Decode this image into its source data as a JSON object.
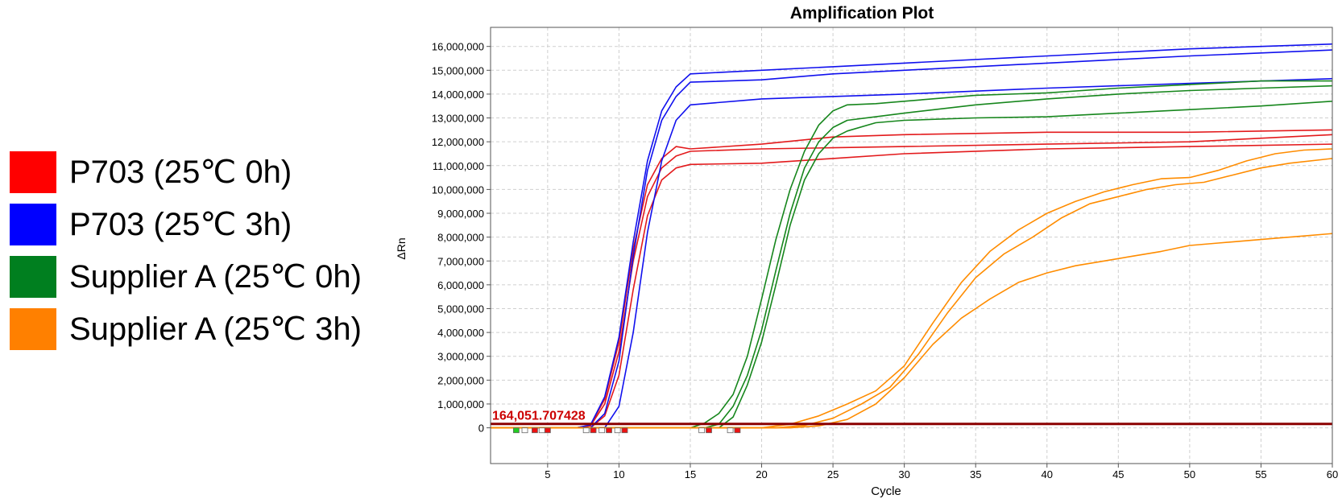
{
  "legend": [
    {
      "label": "P703 (25℃ 0h)",
      "color": "#ff0000"
    },
    {
      "label": "P703 (25℃ 3h)",
      "color": "#0000ff"
    },
    {
      "label": "Supplier A (25℃ 0h)",
      "color": "#007f1f"
    },
    {
      "label": "Supplier A (25℃ 3h)",
      "color": "#ff8000"
    }
  ],
  "chart_data": {
    "type": "line",
    "title": "Amplification Plot",
    "xlabel": "Cycle",
    "ylabel": "ΔRn",
    "xlim": [
      1,
      60
    ],
    "ylim": [
      -1500000,
      16800000
    ],
    "x_ticks": [
      5,
      10,
      15,
      20,
      25,
      30,
      35,
      40,
      45,
      50,
      55,
      60
    ],
    "y_ticks": [
      "0",
      "1,000,000",
      "2,000,000",
      "3,000,000",
      "4,000,000",
      "5,000,000",
      "6,000,000",
      "7,000,000",
      "8,000,000",
      "9,000,000",
      "10,000,000",
      "11,000,000",
      "12,000,000",
      "13,000,000",
      "14,000,000",
      "15,000,000",
      "16,000,000"
    ],
    "grid": true,
    "threshold": {
      "value": 164051.707428,
      "label": "164,051.707428",
      "color": "#8b0000",
      "label_color": "#cc0000"
    },
    "series": [
      {
        "group": "P703 (25℃ 0h)",
        "color": "#e31a1c",
        "points": [
          [
            1,
            0
          ],
          [
            7,
            0
          ],
          [
            8,
            100000
          ],
          [
            9,
            1200000
          ],
          [
            10,
            3600000
          ],
          [
            11,
            7500000
          ],
          [
            12,
            10200000
          ],
          [
            13,
            11300000
          ],
          [
            14,
            11800000
          ],
          [
            15,
            11700000
          ],
          [
            20,
            11900000
          ],
          [
            25,
            12200000
          ],
          [
            30,
            12300000
          ],
          [
            40,
            12400000
          ],
          [
            50,
            12400000
          ],
          [
            60,
            12500000
          ]
        ]
      },
      {
        "group": "P703 (25℃ 0h)",
        "color": "#e31a1c",
        "points": [
          [
            1,
            0
          ],
          [
            7,
            0
          ],
          [
            8,
            80000
          ],
          [
            9,
            1000000
          ],
          [
            10,
            3200000
          ],
          [
            11,
            7000000
          ],
          [
            12,
            9700000
          ],
          [
            13,
            10900000
          ],
          [
            14,
            11400000
          ],
          [
            15,
            11600000
          ],
          [
            20,
            11700000
          ],
          [
            25,
            11750000
          ],
          [
            30,
            11800000
          ],
          [
            40,
            11900000
          ],
          [
            50,
            12000000
          ],
          [
            60,
            12300000
          ]
        ]
      },
      {
        "group": "P703 (25℃ 0h)",
        "color": "#e31a1c",
        "points": [
          [
            1,
            0
          ],
          [
            8,
            0
          ],
          [
            9,
            500000
          ],
          [
            10,
            2200000
          ],
          [
            11,
            5800000
          ],
          [
            12,
            8900000
          ],
          [
            13,
            10400000
          ],
          [
            14,
            10900000
          ],
          [
            15,
            11050000
          ],
          [
            20,
            11100000
          ],
          [
            25,
            11300000
          ],
          [
            30,
            11500000
          ],
          [
            40,
            11700000
          ],
          [
            50,
            11800000
          ],
          [
            60,
            11900000
          ]
        ]
      },
      {
        "group": "P703 (25℃ 3h)",
        "color": "#1010ee",
        "points": [
          [
            1,
            0
          ],
          [
            7,
            0
          ],
          [
            8,
            120000
          ],
          [
            9,
            1300000
          ],
          [
            10,
            3800000
          ],
          [
            11,
            7800000
          ],
          [
            12,
            11200000
          ],
          [
            13,
            13300000
          ],
          [
            14,
            14300000
          ],
          [
            15,
            14850000
          ],
          [
            20,
            15000000
          ],
          [
            25,
            15150000
          ],
          [
            30,
            15300000
          ],
          [
            40,
            15600000
          ],
          [
            50,
            15900000
          ],
          [
            60,
            16100000
          ]
        ]
      },
      {
        "group": "P703 (25℃ 3h)",
        "color": "#1010ee",
        "points": [
          [
            1,
            0
          ],
          [
            8,
            0
          ],
          [
            9,
            600000
          ],
          [
            10,
            2800000
          ],
          [
            11,
            7200000
          ],
          [
            12,
            10800000
          ],
          [
            13,
            12900000
          ],
          [
            14,
            13900000
          ],
          [
            15,
            14500000
          ],
          [
            20,
            14600000
          ],
          [
            25,
            14850000
          ],
          [
            30,
            15000000
          ],
          [
            40,
            15300000
          ],
          [
            50,
            15600000
          ],
          [
            60,
            15850000
          ]
        ]
      },
      {
        "group": "P703 (25℃ 3h)",
        "color": "#1010ee",
        "points": [
          [
            1,
            0
          ],
          [
            9,
            0
          ],
          [
            10,
            900000
          ],
          [
            11,
            4000000
          ],
          [
            12,
            8200000
          ],
          [
            13,
            11200000
          ],
          [
            14,
            12900000
          ],
          [
            15,
            13550000
          ],
          [
            20,
            13800000
          ],
          [
            25,
            13900000
          ],
          [
            30,
            14000000
          ],
          [
            40,
            14250000
          ],
          [
            50,
            14450000
          ],
          [
            60,
            14650000
          ]
        ]
      },
      {
        "group": "Supplier A (25℃ 0h)",
        "color": "#16861c",
        "points": [
          [
            1,
            0
          ],
          [
            15,
            0
          ],
          [
            16,
            200000
          ],
          [
            17,
            600000
          ],
          [
            18,
            1400000
          ],
          [
            19,
            3000000
          ],
          [
            20,
            5400000
          ],
          [
            21,
            7900000
          ],
          [
            22,
            10000000
          ],
          [
            23,
            11600000
          ],
          [
            24,
            12700000
          ],
          [
            25,
            13300000
          ],
          [
            26,
            13550000
          ],
          [
            28,
            13600000
          ],
          [
            30,
            13700000
          ],
          [
            35,
            13950000
          ],
          [
            40,
            14050000
          ],
          [
            45,
            14250000
          ],
          [
            50,
            14400000
          ],
          [
            55,
            14550000
          ],
          [
            60,
            14550000
          ]
        ]
      },
      {
        "group": "Supplier A (25℃ 0h)",
        "color": "#16861c",
        "points": [
          [
            1,
            0
          ],
          [
            16,
            0
          ],
          [
            17,
            150000
          ],
          [
            18,
            900000
          ],
          [
            19,
            2200000
          ],
          [
            20,
            4100000
          ],
          [
            21,
            6600000
          ],
          [
            22,
            9000000
          ],
          [
            23,
            10900000
          ],
          [
            24,
            12000000
          ],
          [
            25,
            12600000
          ],
          [
            26,
            12900000
          ],
          [
            28,
            13050000
          ],
          [
            30,
            13200000
          ],
          [
            35,
            13550000
          ],
          [
            40,
            13800000
          ],
          [
            45,
            14000000
          ],
          [
            50,
            14150000
          ],
          [
            55,
            14250000
          ],
          [
            60,
            14350000
          ]
        ]
      },
      {
        "group": "Supplier A (25℃ 0h)",
        "color": "#16861c",
        "points": [
          [
            1,
            0
          ],
          [
            17,
            0
          ],
          [
            18,
            450000
          ],
          [
            19,
            1800000
          ],
          [
            20,
            3600000
          ],
          [
            21,
            6000000
          ],
          [
            22,
            8500000
          ],
          [
            23,
            10400000
          ],
          [
            24,
            11500000
          ],
          [
            25,
            12150000
          ],
          [
            26,
            12450000
          ],
          [
            28,
            12800000
          ],
          [
            30,
            12900000
          ],
          [
            35,
            13000000
          ],
          [
            40,
            13050000
          ],
          [
            45,
            13200000
          ],
          [
            50,
            13350000
          ],
          [
            55,
            13500000
          ],
          [
            60,
            13700000
          ]
        ]
      },
      {
        "group": "Supplier A (25℃ 3h)",
        "color": "#ff8c00",
        "points": [
          [
            1,
            0
          ],
          [
            20,
            0
          ],
          [
            22,
            150000
          ],
          [
            24,
            500000
          ],
          [
            26,
            1000000
          ],
          [
            28,
            1550000
          ],
          [
            30,
            2600000
          ],
          [
            32,
            4400000
          ],
          [
            34,
            6100000
          ],
          [
            36,
            7400000
          ],
          [
            38,
            8300000
          ],
          [
            40,
            9000000
          ],
          [
            42,
            9500000
          ],
          [
            44,
            9900000
          ],
          [
            46,
            10200000
          ],
          [
            48,
            10450000
          ],
          [
            50,
            10500000
          ],
          [
            52,
            10800000
          ],
          [
            54,
            11200000
          ],
          [
            56,
            11500000
          ],
          [
            58,
            11650000
          ],
          [
            60,
            11700000
          ]
        ]
      },
      {
        "group": "Supplier A (25℃ 3h)",
        "color": "#ff8c00",
        "points": [
          [
            1,
            0
          ],
          [
            21,
            0
          ],
          [
            23,
            100000
          ],
          [
            25,
            400000
          ],
          [
            27,
            1000000
          ],
          [
            29,
            1700000
          ],
          [
            31,
            3100000
          ],
          [
            33,
            4800000
          ],
          [
            35,
            6300000
          ],
          [
            37,
            7300000
          ],
          [
            39,
            8000000
          ],
          [
            41,
            8800000
          ],
          [
            43,
            9400000
          ],
          [
            45,
            9700000
          ],
          [
            47,
            10000000
          ],
          [
            49,
            10200000
          ],
          [
            51,
            10300000
          ],
          [
            53,
            10600000
          ],
          [
            55,
            10900000
          ],
          [
            57,
            11100000
          ],
          [
            60,
            11300000
          ]
        ]
      },
      {
        "group": "Supplier A (25℃ 3h)",
        "color": "#ff8c00",
        "points": [
          [
            1,
            0
          ],
          [
            22,
            0
          ],
          [
            24,
            80000
          ],
          [
            26,
            350000
          ],
          [
            28,
            1000000
          ],
          [
            30,
            2100000
          ],
          [
            32,
            3500000
          ],
          [
            34,
            4600000
          ],
          [
            36,
            5400000
          ],
          [
            38,
            6100000
          ],
          [
            40,
            6500000
          ],
          [
            42,
            6800000
          ],
          [
            44,
            7000000
          ],
          [
            46,
            7200000
          ],
          [
            48,
            7400000
          ],
          [
            50,
            7650000
          ],
          [
            52,
            7750000
          ],
          [
            54,
            7850000
          ],
          [
            56,
            7950000
          ],
          [
            58,
            8050000
          ],
          [
            60,
            8150000
          ]
        ]
      }
    ]
  }
}
